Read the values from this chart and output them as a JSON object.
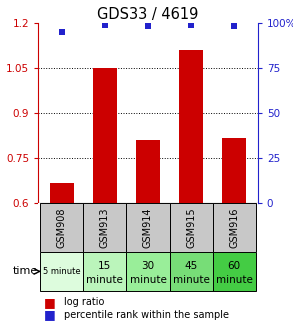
{
  "title": "GDS33 / 4619",
  "gsm_labels": [
    "GSM908",
    "GSM913",
    "GSM914",
    "GSM915",
    "GSM916"
  ],
  "time_labels_top": [
    "5 minute",
    "15",
    "30",
    "45",
    "60"
  ],
  "time_labels_bot": [
    "",
    "minute",
    "minute",
    "minute",
    "minute"
  ],
  "log_ratios": [
    0.665,
    1.05,
    0.81,
    1.11,
    0.815
  ],
  "percentile_ranks": [
    95,
    99,
    98,
    99,
    98
  ],
  "ylim_left": [
    0.6,
    1.2
  ],
  "ylim_right": [
    0,
    100
  ],
  "yticks_left": [
    0.6,
    0.75,
    0.9,
    1.05,
    1.2
  ],
  "yticks_right": [
    0,
    25,
    50,
    75,
    100
  ],
  "bar_color": "#cc0000",
  "dot_color": "#2222cc",
  "bg_color": "#ffffff",
  "gsm_bg": "#c8c8c8",
  "time_colors": [
    "#ddfcdd",
    "#bbf5bb",
    "#99ee99",
    "#77dd77",
    "#44cc44"
  ],
  "bar_width": 0.55,
  "legend_bar_label": "log ratio",
  "legend_dot_label": "percentile rank within the sample",
  "time_row_label": "time",
  "figsize": [
    2.93,
    3.27
  ],
  "dpi": 100
}
